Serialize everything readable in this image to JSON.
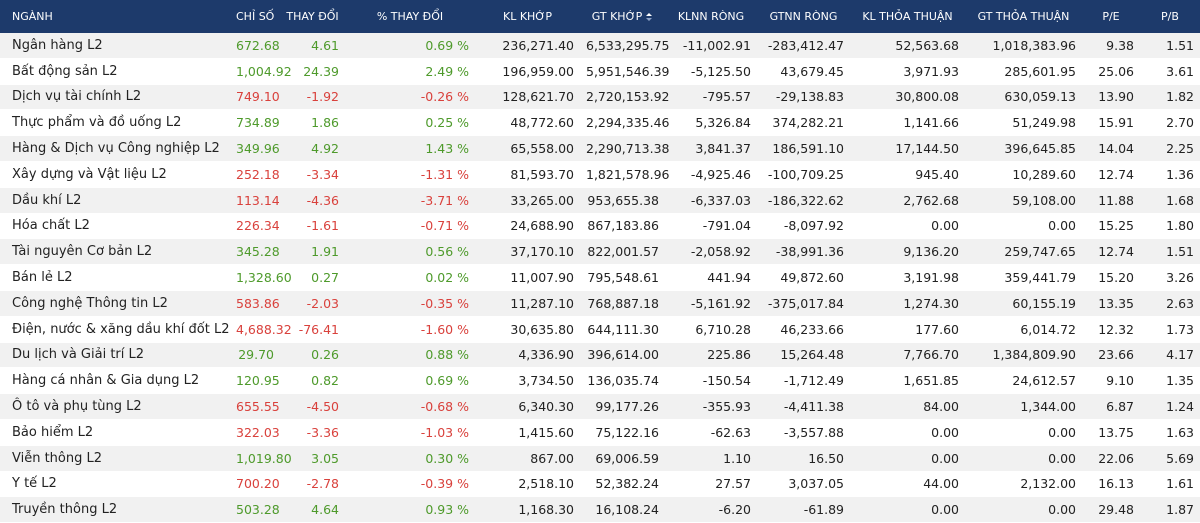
{
  "table": {
    "header": [
      "NGÀNH",
      "CHỈ SỐ",
      "THAY ĐỔI",
      "% THAY ĐỔI",
      "KL KHỚP",
      "GT KHỚP",
      "KLNN RÒNG",
      "GTNN RÒNG",
      "KL THỎA THUẬN",
      "GT THỎA THUẬN",
      "P/E",
      "P/B"
    ],
    "rows": [
      [
        "Ngân hàng L2",
        "672.68",
        "4.61",
        "0.69 %",
        "236,271.40",
        "6,533,295.75",
        "-11,002.91",
        "-283,412.47",
        "52,563.68",
        "1,018,383.96",
        "9.38",
        "1.51"
      ],
      [
        "Bất động sản L2",
        "1,004.92",
        "24.39",
        "2.49 %",
        "196,959.00",
        "5,951,546.39",
        "-5,125.50",
        "43,679.45",
        "3,971.93",
        "285,601.95",
        "25.06",
        "3.61"
      ],
      [
        "Dịch vụ tài chính L2",
        "749.10",
        "-1.92",
        "-0.26 %",
        "128,621.70",
        "2,720,153.92",
        "-795.57",
        "-29,138.83",
        "30,800.08",
        "630,059.13",
        "13.90",
        "1.82"
      ],
      [
        "Thực phẩm và đồ uống L2",
        "734.89",
        "1.86",
        "0.25 %",
        "48,772.60",
        "2,294,335.46",
        "5,326.84",
        "374,282.21",
        "1,141.66",
        "51,249.98",
        "15.91",
        "2.70"
      ],
      [
        "Hàng & Dịch vụ Công nghiệp L2",
        "349.96",
        "4.92",
        "1.43 %",
        "65,558.00",
        "2,290,713.38",
        "3,841.37",
        "186,591.10",
        "17,144.50",
        "396,645.85",
        "14.04",
        "2.25"
      ],
      [
        "Xây dựng và Vật liệu L2",
        "252.18",
        "-3.34",
        "-1.31 %",
        "81,593.70",
        "1,821,578.96",
        "-4,925.46",
        "-100,709.25",
        "945.40",
        "10,289.60",
        "12.74",
        "1.36"
      ],
      [
        "Dầu khí L2",
        "113.14",
        "-4.36",
        "-3.71 %",
        "33,265.00",
        "953,655.38",
        "-6,337.03",
        "-186,322.62",
        "2,762.68",
        "59,108.00",
        "11.88",
        "1.68"
      ],
      [
        "Hóa chất L2",
        "226.34",
        "-1.61",
        "-0.71 %",
        "24,688.90",
        "867,183.86",
        "-791.04",
        "-8,097.92",
        "0.00",
        "0.00",
        "15.25",
        "1.80"
      ],
      [
        "Tài nguyên Cơ bản L2",
        "345.28",
        "1.91",
        "0.56 %",
        "37,170.10",
        "822,001.57",
        "-2,058.92",
        "-38,991.36",
        "9,136.20",
        "259,747.65",
        "12.74",
        "1.51"
      ],
      [
        "Bán lẻ L2",
        "1,328.60",
        "0.27",
        "0.02 %",
        "11,007.90",
        "795,548.61",
        "441.94",
        "49,872.60",
        "3,191.98",
        "359,441.79",
        "15.20",
        "3.26"
      ],
      [
        "Công nghệ Thông tin L2",
        "583.86",
        "-2.03",
        "-0.35 %",
        "11,287.10",
        "768,887.18",
        "-5,161.92",
        "-375,017.84",
        "1,274.30",
        "60,155.19",
        "13.35",
        "2.63"
      ],
      [
        "Điện, nước & xăng dầu khí đốt L2",
        "4,688.32",
        "-76.41",
        "-1.60 %",
        "30,635.80",
        "644,111.30",
        "6,710.28",
        "46,233.66",
        "177.60",
        "6,014.72",
        "12.32",
        "1.73"
      ],
      [
        "Du lịch và Giải trí L2",
        "29.70",
        "0.26",
        "0.88 %",
        "4,336.90",
        "396,614.00",
        "225.86",
        "15,264.48",
        "7,766.70",
        "1,384,809.90",
        "23.66",
        "4.17"
      ],
      [
        "Hàng cá nhân & Gia dụng L2",
        "120.95",
        "0.82",
        "0.69 %",
        "3,734.50",
        "136,035.74",
        "-150.54",
        "-1,712.49",
        "1,651.85",
        "24,612.57",
        "9.10",
        "1.35"
      ],
      [
        "Ô tô và phụ tùng L2",
        "655.55",
        "-4.50",
        "-0.68 %",
        "6,340.30",
        "99,177.26",
        "-355.93",
        "-4,411.38",
        "84.00",
        "1,344.00",
        "6.87",
        "1.24"
      ],
      [
        "Bảo hiểm L2",
        "322.03",
        "-3.36",
        "-1.03 %",
        "1,415.60",
        "75,122.16",
        "-62.63",
        "-3,557.88",
        "0.00",
        "0.00",
        "13.75",
        "1.63"
      ],
      [
        "Viễn thông L2",
        "1,019.80",
        "3.05",
        "0.30 %",
        "867.00",
        "69,006.59",
        "1.10",
        "16.50",
        "0.00",
        "0.00",
        "22.06",
        "5.69"
      ],
      [
        "Y tế L2",
        "700.20",
        "-2.78",
        "-0.39 %",
        "2,518.10",
        "52,382.24",
        "27.57",
        "3,037.05",
        "44.00",
        "2,132.00",
        "16.13",
        "1.61"
      ],
      [
        "Truyền thông L2",
        "503.28",
        "4.64",
        "0.93 %",
        "1,168.30",
        "16,108.24",
        "-6.20",
        "-61.89",
        "0.00",
        "0.00",
        "29.48",
        "1.87"
      ]
    ]
  }
}
